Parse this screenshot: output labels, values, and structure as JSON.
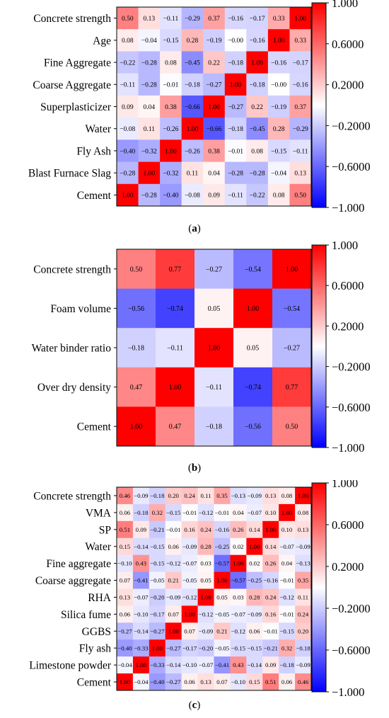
{
  "chart_data": [
    {
      "type": "heatmap",
      "caption": "a",
      "rows": [
        "Concrete strength",
        "Age",
        "Fine Aggregate",
        "Coarse Aggregate",
        "Superplasticizer",
        "Water",
        "Fly Ash",
        "Blast Furnace Slag",
        "Cement"
      ],
      "values": [
        [
          0.5,
          0.13,
          -0.11,
          -0.29,
          0.37,
          -0.16,
          -0.17,
          0.33,
          1.0
        ],
        [
          0.08,
          -0.04,
          -0.15,
          0.28,
          -0.19,
          -0.0,
          -0.16,
          1.0,
          0.33
        ],
        [
          -0.22,
          -0.28,
          0.08,
          -0.45,
          0.22,
          -0.18,
          1.0,
          -0.16,
          -0.17
        ],
        [
          -0.11,
          -0.28,
          -0.01,
          -0.18,
          -0.27,
          1.0,
          -0.18,
          -0.0,
          -0.16
        ],
        [
          0.09,
          0.04,
          0.38,
          -0.66,
          1.0,
          -0.27,
          0.22,
          -0.19,
          0.37
        ],
        [
          -0.08,
          0.11,
          -0.26,
          1.0,
          -0.66,
          -0.18,
          -0.45,
          0.28,
          -0.29
        ],
        [
          -0.4,
          -0.32,
          1.0,
          -0.26,
          0.38,
          -0.01,
          0.08,
          -0.15,
          -0.11
        ],
        [
          -0.28,
          1.0,
          -0.32,
          0.11,
          0.04,
          -0.28,
          -0.28,
          -0.04,
          0.13
        ],
        [
          1.0,
          -0.28,
          -0.4,
          -0.08,
          0.09,
          -0.11,
          -0.22,
          0.08,
          0.5
        ]
      ],
      "colorbar_ticks": [
        "1.000",
        "0.6000",
        "0.2000",
        "-0.2000",
        "-0.6000",
        "-1.000"
      ],
      "colorbar_range": [
        -1,
        1
      ]
    },
    {
      "type": "heatmap",
      "caption": "b",
      "rows": [
        "Concrete strength",
        "Foam volume",
        "Water binder ratio",
        "Over dry density",
        "Cement"
      ],
      "values": [
        [
          0.5,
          0.77,
          -0.27,
          -0.54,
          1.0
        ],
        [
          -0.56,
          -0.74,
          0.05,
          1.0,
          -0.54
        ],
        [
          -0.18,
          -0.11,
          1.0,
          0.05,
          -0.27
        ],
        [
          0.47,
          1.0,
          -0.11,
          -0.74,
          0.77
        ],
        [
          1.0,
          0.47,
          -0.18,
          -0.56,
          0.5
        ]
      ],
      "colorbar_ticks": [
        "1.000",
        "0.6000",
        "0.2000",
        "-0.2000",
        "-0.6000",
        "-1.000"
      ],
      "colorbar_range": [
        -1,
        1
      ]
    },
    {
      "type": "heatmap",
      "caption": "c",
      "rows": [
        "Concrete strength",
        "VMA",
        "SP",
        "Water",
        "Fine aggregate",
        "Coarse aggregate",
        "RHA",
        "Silica fume",
        "GGBS",
        "Fly ash",
        "Limestone powder",
        "Cement"
      ],
      "values": [
        [
          0.46,
          -0.09,
          -0.18,
          0.2,
          0.24,
          0.11,
          0.35,
          -0.13,
          -0.09,
          0.13,
          0.08,
          1.0
        ],
        [
          0.06,
          -0.18,
          0.32,
          -0.15,
          -0.01,
          -0.12,
          -0.01,
          0.04,
          -0.07,
          0.1,
          1.0,
          0.08
        ],
        [
          0.51,
          0.09,
          -0.21,
          -0.01,
          0.16,
          0.24,
          -0.16,
          0.26,
          0.14,
          1.0,
          0.1,
          0.13
        ],
        [
          0.15,
          -0.14,
          -0.15,
          0.06,
          -0.09,
          0.28,
          -0.25,
          0.02,
          1.0,
          0.14,
          -0.07,
          -0.09
        ],
        [
          -0.1,
          0.43,
          -0.15,
          -0.12,
          -0.07,
          0.03,
          -0.57,
          1.0,
          0.02,
          0.26,
          0.04,
          -0.13
        ],
        [
          0.07,
          -0.41,
          -0.05,
          0.21,
          -0.05,
          0.05,
          1.0,
          -0.57,
          -0.25,
          -0.16,
          -0.01,
          0.35
        ],
        [
          0.13,
          -0.07,
          -0.2,
          -0.09,
          -0.12,
          1.0,
          0.05,
          0.03,
          0.28,
          0.24,
          -0.12,
          0.11
        ],
        [
          0.06,
          -0.1,
          -0.17,
          0.07,
          1.0,
          -0.12,
          -0.05,
          -0.07,
          -0.09,
          0.16,
          -0.01,
          0.24
        ],
        [
          -0.27,
          -0.14,
          -0.27,
          1.0,
          0.07,
          -0.09,
          0.21,
          -0.12,
          0.06,
          -0.01,
          -0.15,
          0.2
        ],
        [
          -0.4,
          -0.33,
          1.0,
          -0.27,
          -0.17,
          -0.2,
          -0.05,
          -0.15,
          -0.15,
          -0.21,
          0.32,
          -0.18
        ],
        [
          -0.04,
          1.0,
          -0.33,
          -0.14,
          -0.1,
          -0.07,
          -0.41,
          0.43,
          -0.14,
          0.09,
          -0.18,
          -0.09
        ],
        [
          1.0,
          -0.04,
          -0.4,
          -0.27,
          0.06,
          0.13,
          0.07,
          -0.1,
          0.15,
          0.51,
          0.06,
          0.46
        ]
      ],
      "colorbar_ticks": [
        "1.000",
        "0.6000",
        "0.2000",
        "-0.2000",
        "-0.6000",
        "-1.000"
      ],
      "colorbar_range": [
        -1,
        1
      ]
    }
  ],
  "captions": {
    "a": {
      "open": "(",
      "letter": "a",
      "close": ")"
    },
    "b": {
      "open": "(",
      "letter": "b",
      "close": ")"
    },
    "c": {
      "open": "(",
      "letter": "c",
      "close": ")"
    }
  }
}
